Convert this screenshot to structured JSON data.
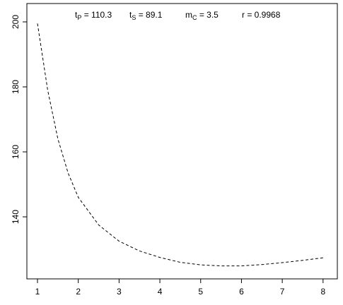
{
  "chart_data": {
    "type": "line",
    "annotations": [
      {
        "base": "t",
        "sub": "P",
        "rest": " = 110.3"
      },
      {
        "base": "t",
        "sub": "S",
        "rest": " = 89.1"
      },
      {
        "base": "m",
        "sub": "C",
        "rest": " = 3.5"
      },
      {
        "base": "r",
        "rest": " = 0.9968"
      }
    ],
    "x": [
      1,
      1.25,
      1.5,
      1.75,
      2,
      2.5,
      3,
      3.5,
      4,
      4.5,
      5,
      5.5,
      6,
      6.5,
      7,
      7.5,
      8
    ],
    "series": [
      {
        "color": "#000000",
        "values": [
          199.5,
          179,
          164,
          153.5,
          146,
          137.5,
          132.5,
          129.5,
          127.5,
          126,
          125.2,
          124.9,
          124.9,
          125.3,
          125.9,
          126.6,
          127.4
        ]
      }
    ],
    "xlim": [
      0.74,
      8.35
    ],
    "ylim": [
      120.9,
      205.65
    ],
    "xticks": [
      1,
      2,
      3,
      4,
      5,
      6,
      7,
      8
    ],
    "yticks": [
      140,
      160,
      180,
      200
    ]
  }
}
